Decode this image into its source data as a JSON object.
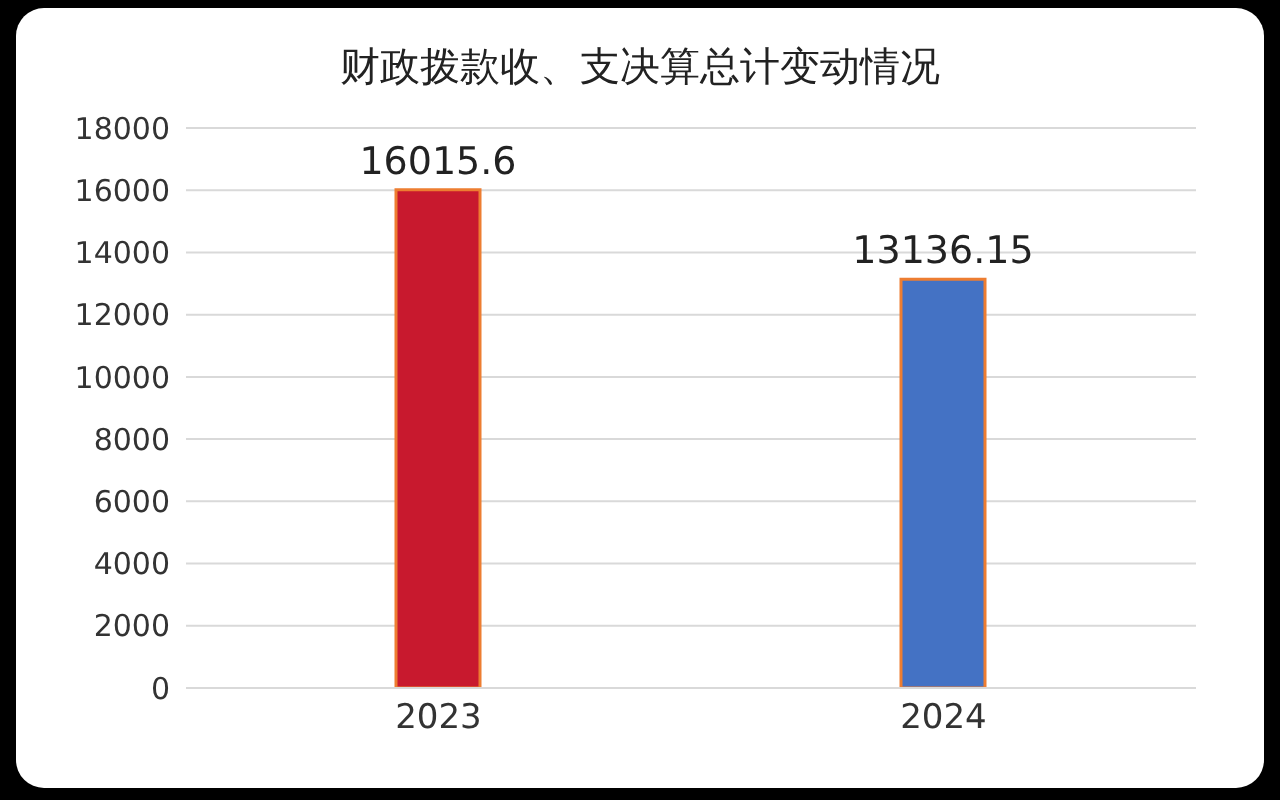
{
  "chart_data": {
    "type": "bar",
    "title": "财政拨款收、支决算总计变动情况",
    "categories": [
      "2023",
      "2024"
    ],
    "values": [
      16015.6,
      13136.15
    ],
    "colors": [
      "#c8192e",
      "#4472c4"
    ],
    "ylim": [
      0,
      18000
    ],
    "yticks": [
      0,
      2000,
      4000,
      6000,
      8000,
      10000,
      12000,
      14000,
      16000,
      18000
    ],
    "grid": "y",
    "data_labels": true
  }
}
